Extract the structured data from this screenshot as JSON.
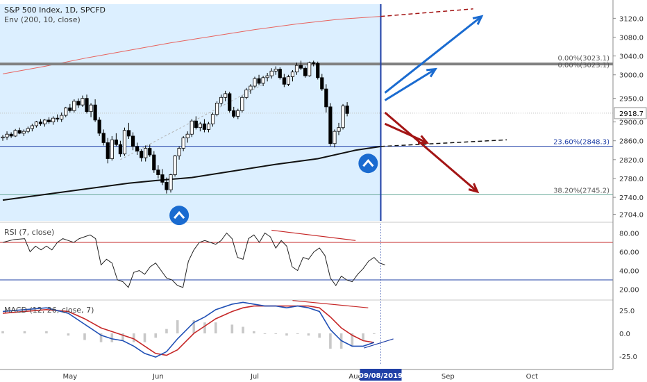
{
  "header": {
    "title": "S&P 500 Index, 1D, SPCFD",
    "indicator": "Env (200, 10, close)"
  },
  "colors": {
    "up": "#ffffff",
    "down": "#000000",
    "shade": "#dcefff",
    "sma": "#111111",
    "envelope": "#e8625e",
    "hline_blue": "#1f3fa6",
    "hline_grey": "#808080",
    "vline": "#1f3fa6",
    "arrow_blue": "#1a6bd0",
    "arrow_red": "#a31515",
    "badge": "#1a6bd0",
    "rsi": "#222222",
    "macd": "#1f4fb5",
    "signal": "#c62828",
    "hist": "#c8c8c8"
  },
  "chart_data": [
    {
      "type": "candlestick",
      "title": "S&P 500 Index, 1D, SPCFD",
      "ylim": [
        2690,
        3150
      ],
      "y_ticks": [
        "3120.0",
        "3080.0",
        "3040.0",
        "3000.0",
        "2950.0",
        "2900.0",
        "2860.0",
        "2820.0",
        "2780.0",
        "2740.0",
        "2704.0"
      ],
      "last_price": "2918.7",
      "x_ticks": [
        {
          "label": "May",
          "index": 16
        },
        {
          "label": "Jun",
          "index": 37
        },
        {
          "label": "Jul",
          "index": 60
        },
        {
          "label": "Aug",
          "index": 84
        },
        {
          "label": "Sep",
          "index": 106
        },
        {
          "label": "Oct",
          "index": 126
        }
      ],
      "cursor_date": "09/08/2019",
      "cursor_index": 90,
      "fib_levels": [
        {
          "label": "0.00%(3023.1)",
          "value": 3023.1
        },
        {
          "label": "0.00%(3023.1)",
          "value": 3023.1
        },
        {
          "label": "23.60%(2848.3)",
          "value": 2848.3
        },
        {
          "label": "38.20%(2745.2)",
          "value": 2745.2
        }
      ],
      "candles": [
        [
          2866,
          2872,
          2860,
          2868
        ],
        [
          2868,
          2880,
          2862,
          2874
        ],
        [
          2874,
          2878,
          2866,
          2870
        ],
        [
          2870,
          2885,
          2868,
          2882
        ],
        [
          2882,
          2888,
          2874,
          2876
        ],
        [
          2876,
          2884,
          2870,
          2880
        ],
        [
          2880,
          2890,
          2876,
          2886
        ],
        [
          2886,
          2896,
          2880,
          2892
        ],
        [
          2892,
          2902,
          2888,
          2900
        ],
        [
          2900,
          2906,
          2892,
          2896
        ],
        [
          2896,
          2906,
          2890,
          2904
        ],
        [
          2904,
          2910,
          2896,
          2900
        ],
        [
          2900,
          2912,
          2894,
          2908
        ],
        [
          2908,
          2916,
          2900,
          2906
        ],
        [
          2906,
          2920,
          2900,
          2914
        ],
        [
          2914,
          2932,
          2910,
          2930
        ],
        [
          2930,
          2938,
          2920,
          2924
        ],
        [
          2924,
          2948,
          2920,
          2944
        ],
        [
          2944,
          2950,
          2930,
          2936
        ],
        [
          2936,
          2956,
          2932,
          2950
        ],
        [
          2950,
          2958,
          2918,
          2922
        ],
        [
          2922,
          2940,
          2910,
          2936
        ],
        [
          2936,
          2948,
          2900,
          2904
        ],
        [
          2904,
          2910,
          2870,
          2876
        ],
        [
          2876,
          2884,
          2850,
          2856
        ],
        [
          2856,
          2866,
          2812,
          2822
        ],
        [
          2822,
          2870,
          2818,
          2862
        ],
        [
          2862,
          2876,
          2848,
          2852
        ],
        [
          2852,
          2860,
          2826,
          2832
        ],
        [
          2832,
          2888,
          2828,
          2882
        ],
        [
          2882,
          2898,
          2864,
          2870
        ],
        [
          2870,
          2878,
          2840,
          2848
        ],
        [
          2848,
          2856,
          2830,
          2838
        ],
        [
          2838,
          2842,
          2816,
          2824
        ],
        [
          2824,
          2850,
          2816,
          2844
        ],
        [
          2844,
          2852,
          2826,
          2830
        ],
        [
          2830,
          2838,
          2792,
          2798
        ],
        [
          2798,
          2808,
          2780,
          2788
        ],
        [
          2788,
          2800,
          2766,
          2772
        ],
        [
          2772,
          2782,
          2748,
          2756
        ],
        [
          2756,
          2790,
          2750,
          2788
        ],
        [
          2788,
          2830,
          2784,
          2828
        ],
        [
          2828,
          2848,
          2820,
          2844
        ],
        [
          2844,
          2870,
          2838,
          2866
        ],
        [
          2866,
          2880,
          2856,
          2874
        ],
        [
          2874,
          2906,
          2868,
          2902
        ],
        [
          2902,
          2912,
          2884,
          2888
        ],
        [
          2888,
          2900,
          2880,
          2896
        ],
        [
          2896,
          2906,
          2878,
          2884
        ],
        [
          2884,
          2900,
          2878,
          2896
        ],
        [
          2896,
          2920,
          2890,
          2916
        ],
        [
          2916,
          2944,
          2912,
          2940
        ],
        [
          2940,
          2958,
          2934,
          2952
        ],
        [
          2952,
          2966,
          2944,
          2960
        ],
        [
          2960,
          2964,
          2920,
          2924
        ],
        [
          2924,
          2932,
          2908,
          2912
        ],
        [
          2912,
          2928,
          2906,
          2924
        ],
        [
          2924,
          2956,
          2920,
          2952
        ],
        [
          2952,
          2972,
          2948,
          2968
        ],
        [
          2968,
          2980,
          2960,
          2976
        ],
        [
          2976,
          2996,
          2972,
          2992
        ],
        [
          2992,
          3000,
          2978,
          2982
        ],
        [
          2982,
          2998,
          2976,
          2994
        ],
        [
          2994,
          3004,
          2986,
          2998
        ],
        [
          2998,
          3014,
          2992,
          3008
        ],
        [
          3008,
          3018,
          3000,
          3012
        ],
        [
          3012,
          3016,
          2990,
          2994
        ],
        [
          2994,
          3002,
          2974,
          2980
        ],
        [
          2980,
          3000,
          2976,
          2996
        ],
        [
          2996,
          3010,
          2986,
          3006
        ],
        [
          3006,
          3026,
          3000,
          3020
        ],
        [
          3020,
          3030,
          3010,
          3014
        ],
        [
          3014,
          3018,
          2994,
          2998
        ],
        [
          2998,
          3028,
          2996,
          3026
        ],
        [
          3026,
          3030,
          3018,
          3024
        ],
        [
          3024,
          3028,
          2990,
          2994
        ],
        [
          2994,
          3002,
          2966,
          2970
        ],
        [
          2970,
          2980,
          2920,
          2932
        ],
        [
          2932,
          2940,
          2848,
          2854
        ],
        [
          2854,
          2884,
          2846,
          2880
        ],
        [
          2880,
          2898,
          2872,
          2888
        ],
        [
          2888,
          2938,
          2884,
          2934
        ],
        [
          2934,
          2942,
          2912,
          2918
        ]
      ],
      "sma200": [
        [
          0,
          2734
        ],
        [
          10,
          2746
        ],
        [
          20,
          2758
        ],
        [
          30,
          2770
        ],
        [
          37,
          2776
        ],
        [
          45,
          2782
        ],
        [
          55,
          2796
        ],
        [
          65,
          2810
        ],
        [
          75,
          2822
        ],
        [
          84,
          2840
        ],
        [
          90,
          2848
        ]
      ],
      "envelope_upper": [
        [
          0,
          3002
        ],
        [
          10,
          3018
        ],
        [
          20,
          3036
        ],
        [
          30,
          3052
        ],
        [
          40,
          3068
        ],
        [
          50,
          3082
        ],
        [
          60,
          3096
        ],
        [
          70,
          3108
        ],
        [
          80,
          3118
        ],
        [
          90,
          3124
        ]
      ]
    },
    {
      "type": "line",
      "title": "RSI (7, close)",
      "ylim": [
        10,
        90
      ],
      "y_ticks": [
        "80.00",
        "60.00",
        "40.00",
        "20.00"
      ],
      "upper_band": 70,
      "lower_band": 30,
      "values": [
        [
          0,
          70
        ],
        [
          4,
          73
        ],
        [
          8,
          74
        ],
        [
          10,
          60
        ],
        [
          12,
          66
        ],
        [
          14,
          62
        ],
        [
          16,
          66
        ],
        [
          18,
          62
        ],
        [
          20,
          70
        ],
        [
          22,
          74
        ],
        [
          24,
          72
        ],
        [
          26,
          70
        ],
        [
          28,
          74
        ],
        [
          30,
          76
        ],
        [
          32,
          78
        ],
        [
          34,
          74
        ],
        [
          36,
          46
        ],
        [
          38,
          52
        ],
        [
          40,
          48
        ],
        [
          42,
          30
        ],
        [
          44,
          28
        ],
        [
          46,
          22
        ],
        [
          48,
          38
        ],
        [
          50,
          40
        ],
        [
          52,
          36
        ],
        [
          54,
          44
        ],
        [
          56,
          48
        ],
        [
          58,
          40
        ],
        [
          60,
          32
        ],
        [
          62,
          30
        ],
        [
          64,
          24
        ],
        [
          66,
          22
        ],
        [
          68,
          50
        ],
        [
          70,
          62
        ],
        [
          72,
          70
        ],
        [
          74,
          72
        ],
        [
          76,
          70
        ],
        [
          78,
          68
        ],
        [
          80,
          72
        ],
        [
          82,
          80
        ],
        [
          84,
          74
        ],
        [
          86,
          54
        ],
        [
          88,
          52
        ],
        [
          90,
          74
        ],
        [
          92,
          78
        ],
        [
          94,
          70
        ],
        [
          96,
          80
        ],
        [
          98,
          76
        ],
        [
          100,
          64
        ],
        [
          102,
          72
        ],
        [
          104,
          66
        ],
        [
          106,
          44
        ],
        [
          108,
          40
        ],
        [
          110,
          54
        ],
        [
          112,
          52
        ],
        [
          114,
          60
        ],
        [
          116,
          64
        ],
        [
          118,
          56
        ],
        [
          120,
          32
        ],
        [
          122,
          24
        ],
        [
          124,
          34
        ],
        [
          126,
          30
        ],
        [
          128,
          28
        ],
        [
          130,
          36
        ],
        [
          132,
          42
        ],
        [
          134,
          50
        ],
        [
          136,
          54
        ],
        [
          138,
          48
        ],
        [
          140,
          46
        ]
      ]
    },
    {
      "type": "line",
      "title": "MACD (12, 26, close, 7)",
      "ylim": [
        -35,
        35
      ],
      "y_ticks": [
        "25.0",
        "0.0",
        "-25.0"
      ],
      "macd": [
        [
          0,
          24
        ],
        [
          8,
          26
        ],
        [
          16,
          28
        ],
        [
          24,
          22
        ],
        [
          30,
          10
        ],
        [
          36,
          -2
        ],
        [
          40,
          -6
        ],
        [
          44,
          -8
        ],
        [
          48,
          -14
        ],
        [
          52,
          -22
        ],
        [
          56,
          -26
        ],
        [
          60,
          -20
        ],
        [
          64,
          -6
        ],
        [
          70,
          12
        ],
        [
          74,
          18
        ],
        [
          78,
          26
        ],
        [
          84,
          32
        ],
        [
          88,
          34
        ],
        [
          92,
          32
        ],
        [
          96,
          30
        ],
        [
          100,
          30
        ],
        [
          104,
          28
        ],
        [
          108,
          30
        ],
        [
          112,
          28
        ],
        [
          116,
          24
        ],
        [
          120,
          4
        ],
        [
          124,
          -8
        ],
        [
          128,
          -14
        ],
        [
          132,
          -14
        ],
        [
          136,
          -10
        ]
      ],
      "signal": [
        [
          0,
          22
        ],
        [
          8,
          24
        ],
        [
          16,
          26
        ],
        [
          24,
          24
        ],
        [
          30,
          16
        ],
        [
          36,
          6
        ],
        [
          40,
          2
        ],
        [
          44,
          -2
        ],
        [
          48,
          -6
        ],
        [
          52,
          -14
        ],
        [
          56,
          -22
        ],
        [
          60,
          -24
        ],
        [
          64,
          -18
        ],
        [
          70,
          0
        ],
        [
          74,
          8
        ],
        [
          78,
          16
        ],
        [
          84,
          24
        ],
        [
          88,
          28
        ],
        [
          92,
          30
        ],
        [
          96,
          30
        ],
        [
          100,
          30
        ],
        [
          104,
          30
        ],
        [
          108,
          30
        ],
        [
          112,
          30
        ],
        [
          116,
          28
        ],
        [
          120,
          18
        ],
        [
          124,
          6
        ],
        [
          128,
          -2
        ],
        [
          132,
          -8
        ],
        [
          136,
          -10
        ]
      ]
    }
  ]
}
